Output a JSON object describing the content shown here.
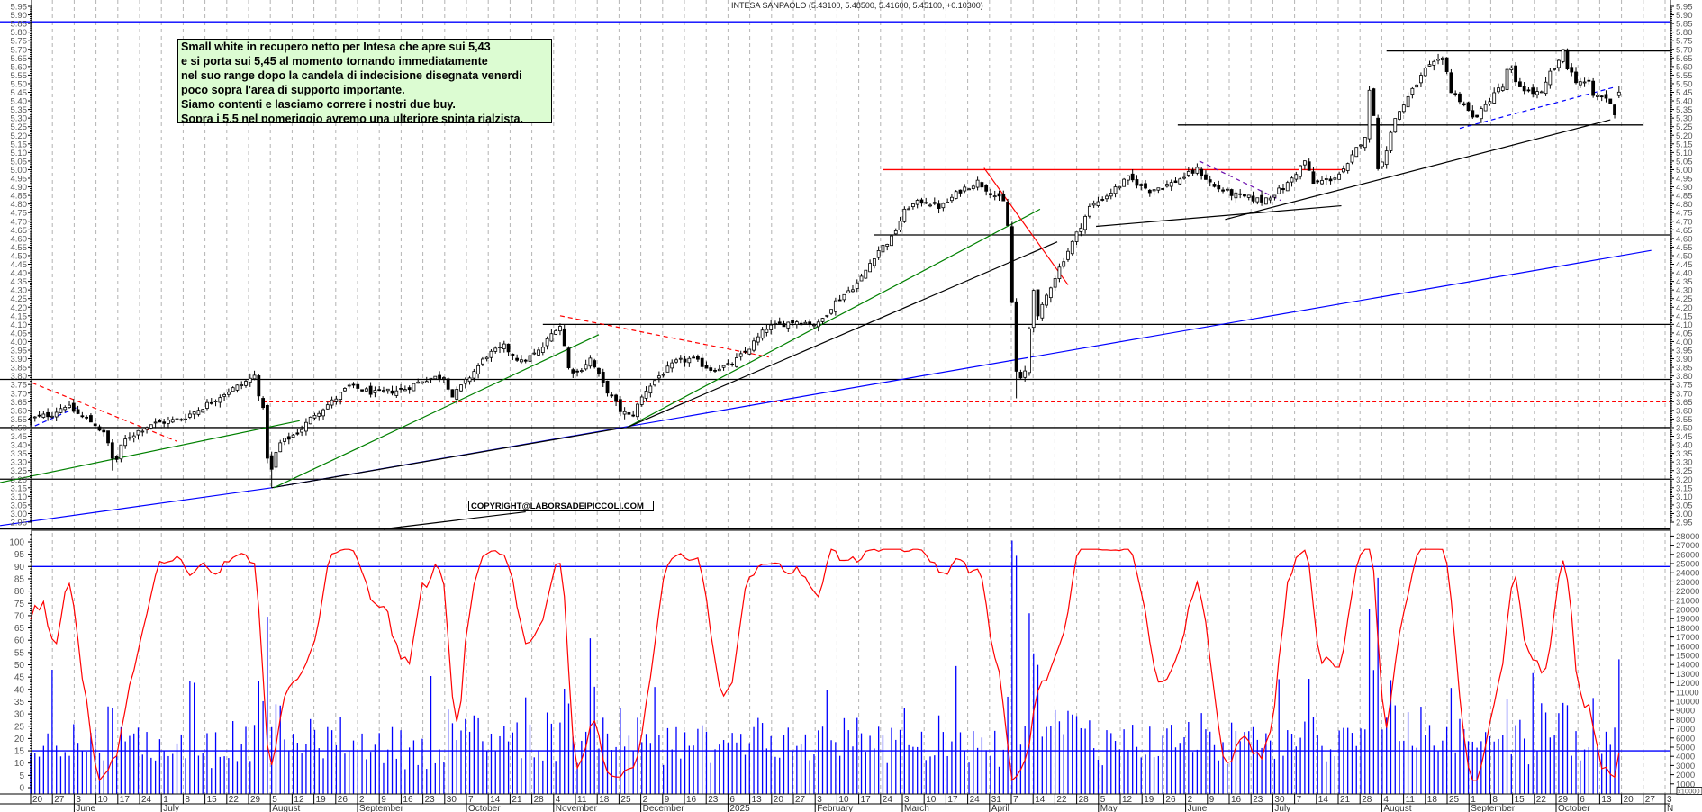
{
  "title": "INTESA SANPAOLO (5.43100, 5.48500, 5.41600, 5.45100, +0.10300)",
  "annotation": {
    "lines": [
      "Small white in recupero netto per Intesa che apre sui 5,43",
      "e si porta sui 5,45 al momento tornando immediatamente",
      "nel suo range dopo la candela di indecisione disegnata venerdi",
      "poco sopra l'area di supporto importante.",
      "Siamo contenti e lasciamo correre i nostri due buy.",
      "Sopra i 5,5 nel pomeriggio avremo una ulteriore spinta rialzista."
    ]
  },
  "copyright": "COPYRIGHT@LABORSADEIPICCOLI.COM",
  "chart_data": {
    "type": "candlestick",
    "title": "INTESA SANPAOLO (5.43100, 5.48500, 5.41600, 5.45100, +0.10300)",
    "last_bar": {
      "open": 5.431,
      "high": 5.485,
      "low": 5.416,
      "close": 5.451,
      "change": 0.103
    },
    "price_axis": {
      "min": 2.95,
      "max": 5.95,
      "step": 0.05
    },
    "osc_axis": {
      "min": 0,
      "max": 100,
      "step": 5
    },
    "volume_axis": {
      "min": 1000,
      "max": 28000,
      "step": 1000,
      "multiplier_label": "x10000"
    },
    "x_ticks": [
      "20",
      "27",
      "3",
      "10",
      "17",
      "24",
      "1",
      "8",
      "15",
      "22",
      "29",
      "5",
      "12",
      "19",
      "26",
      "2",
      "9",
      "16",
      "23",
      "30",
      "7",
      "14",
      "21",
      "28",
      "4",
      "11",
      "18",
      "25",
      "2",
      "9",
      "16",
      "23",
      "6",
      "13",
      "20",
      "27",
      "3",
      "10",
      "17",
      "24",
      "3",
      "10",
      "17",
      "24",
      "31",
      "7",
      "14",
      "22",
      "28",
      "5",
      "12",
      "19",
      "26",
      "2",
      "9",
      "16",
      "23",
      "30",
      "7",
      "14",
      "21",
      "28",
      "4",
      "11",
      "18",
      "25",
      "1",
      "8",
      "15",
      "22",
      "29",
      "6",
      "13",
      "20",
      "27",
      "3"
    ],
    "month_labels": [
      {
        "label": "June",
        "tick": 2
      },
      {
        "label": "July",
        "tick": 6
      },
      {
        "label": "August",
        "tick": 11
      },
      {
        "label": "September",
        "tick": 15
      },
      {
        "label": "October",
        "tick": 20
      },
      {
        "label": "November",
        "tick": 24
      },
      {
        "label": "December",
        "tick": 28
      },
      {
        "label": "2025",
        "tick": 32
      },
      {
        "label": "February",
        "tick": 36
      },
      {
        "label": "March",
        "tick": 40
      },
      {
        "label": "April",
        "tick": 44
      },
      {
        "label": "May",
        "tick": 49
      },
      {
        "label": "June",
        "tick": 53
      },
      {
        "label": "July",
        "tick": 57
      },
      {
        "label": "August",
        "tick": 62
      },
      {
        "label": "September",
        "tick": 66
      },
      {
        "label": "October",
        "tick": 70
      },
      {
        "label": "N",
        "tick": 75
      }
    ],
    "price_anchors_week_price": [
      [
        0,
        3.55
      ],
      [
        1,
        3.58
      ],
      [
        1.6,
        3.63
      ],
      [
        2.2,
        3.58
      ],
      [
        3,
        3.52
      ],
      [
        3.5,
        3.45
      ],
      [
        3.9,
        3.28
      ],
      [
        4.3,
        3.42
      ],
      [
        5,
        3.48
      ],
      [
        5.6,
        3.52
      ],
      [
        7,
        3.55
      ],
      [
        8,
        3.62
      ],
      [
        9,
        3.7
      ],
      [
        9.8,
        3.75
      ],
      [
        10.4,
        3.8
      ],
      [
        10.8,
        3.6
      ],
      [
        11.1,
        3.2
      ],
      [
        11.5,
        3.4
      ],
      [
        12.5,
        3.48
      ],
      [
        13.2,
        3.58
      ],
      [
        14,
        3.65
      ],
      [
        14.8,
        3.74
      ],
      [
        16,
        3.7
      ],
      [
        17.3,
        3.72
      ],
      [
        18.3,
        3.78
      ],
      [
        19.2,
        3.8
      ],
      [
        19.6,
        3.68
      ],
      [
        20.3,
        3.78
      ],
      [
        21.2,
        3.92
      ],
      [
        22,
        3.97
      ],
      [
        22.8,
        3.88
      ],
      [
        23.7,
        3.95
      ],
      [
        24.4,
        4.08
      ],
      [
        24.7,
        4.1
      ],
      [
        24.9,
        3.85
      ],
      [
        25.4,
        3.82
      ],
      [
        26,
        3.9
      ],
      [
        26.6,
        3.75
      ],
      [
        27.4,
        3.6
      ],
      [
        27.9,
        3.56
      ],
      [
        28.6,
        3.72
      ],
      [
        29.2,
        3.8
      ],
      [
        30,
        3.88
      ],
      [
        30.7,
        3.9
      ],
      [
        31.6,
        3.84
      ],
      [
        32.5,
        3.86
      ],
      [
        33.3,
        3.95
      ],
      [
        34.2,
        4.08
      ],
      [
        35.5,
        4.12
      ],
      [
        36.6,
        4.1
      ],
      [
        37.3,
        4.22
      ],
      [
        38.5,
        4.35
      ],
      [
        39.3,
        4.52
      ],
      [
        40,
        4.6
      ],
      [
        40.7,
        4.78
      ],
      [
        41.5,
        4.82
      ],
      [
        42.3,
        4.78
      ],
      [
        43.2,
        4.88
      ],
      [
        44,
        4.93
      ],
      [
        44.8,
        4.85
      ],
      [
        45.3,
        4.8
      ],
      [
        45.5,
        4.55
      ],
      [
        45.7,
        3.9
      ],
      [
        45.9,
        3.75
      ],
      [
        46.3,
        3.85
      ],
      [
        46.55,
        4.42
      ],
      [
        46.7,
        4.1
      ],
      [
        47.3,
        4.3
      ],
      [
        48,
        4.48
      ],
      [
        48.5,
        4.6
      ],
      [
        49.2,
        4.78
      ],
      [
        50,
        4.85
      ],
      [
        51,
        4.95
      ],
      [
        52,
        4.88
      ],
      [
        53,
        4.92
      ],
      [
        54.2,
        5.0
      ],
      [
        55,
        4.9
      ],
      [
        56,
        4.85
      ],
      [
        57.2,
        4.82
      ],
      [
        58.3,
        4.9
      ],
      [
        59.2,
        5.05
      ],
      [
        59.6,
        4.92
      ],
      [
        60.5,
        4.95
      ],
      [
        61.1,
        5.0
      ],
      [
        61.6,
        5.12
      ],
      [
        62,
        5.2
      ],
      [
        62.2,
        5.45
      ],
      [
        62.45,
        5.3
      ],
      [
        62.6,
        5.0
      ],
      [
        63,
        5.12
      ],
      [
        63.4,
        5.3
      ],
      [
        63.8,
        5.38
      ],
      [
        64.3,
        5.48
      ],
      [
        64.8,
        5.58
      ],
      [
        65.3,
        5.62
      ],
      [
        65.7,
        5.65
      ],
      [
        66,
        5.45
      ],
      [
        66.5,
        5.4
      ],
      [
        67,
        5.3
      ],
      [
        67.5,
        5.35
      ],
      [
        68,
        5.45
      ],
      [
        68.4,
        5.48
      ],
      [
        68.7,
        5.62
      ],
      [
        69,
        5.5
      ],
      [
        69.7,
        5.45
      ],
      [
        70.3,
        5.44
      ],
      [
        70.5,
        5.55
      ],
      [
        71,
        5.62
      ],
      [
        71.2,
        5.7
      ],
      [
        71.4,
        5.6
      ],
      [
        71.8,
        5.52
      ],
      [
        72.4,
        5.5
      ],
      [
        72.6,
        5.43
      ],
      [
        73.2,
        5.42
      ],
      [
        73.6,
        5.33
      ],
      [
        73.8,
        5.45
      ]
    ],
    "extreme_lows_week_price": [
      [
        11.1,
        3.15
      ],
      [
        45.9,
        3.67
      ],
      [
        3.9,
        3.25
      ]
    ],
    "horizontal_levels": [
      {
        "price": 5.86,
        "from": null,
        "to": null,
        "color": "#0000ff",
        "dash": false
      },
      {
        "price": 5.69,
        "from": 63,
        "to": null,
        "color": "#000000",
        "dash": false
      },
      {
        "price": 5.26,
        "from": 53.3,
        "to": 74.9,
        "color": "#000000",
        "dash": false
      },
      {
        "price": 5.0,
        "from": 39.6,
        "to": 61.1,
        "color": "#ff0000",
        "dash": false
      },
      {
        "price": 4.62,
        "from": 39.2,
        "to": null,
        "color": "#000000",
        "dash": false
      },
      {
        "price": 4.1,
        "from": 23.8,
        "to": null,
        "color": "#000000",
        "dash": false
      },
      {
        "price": 3.78,
        "from": null,
        "to": null,
        "color": "#000000",
        "dash": false
      },
      {
        "price": 3.65,
        "from": 10.8,
        "to": null,
        "color": "#ff0000",
        "dash": true
      },
      {
        "price": 3.5,
        "from": null,
        "to": null,
        "color": "#000000",
        "dash": false
      },
      {
        "price": 3.2,
        "from": null,
        "to": null,
        "color": "#000000",
        "dash": false
      },
      {
        "price": 2.91,
        "from": null,
        "to": null,
        "color": "#000000",
        "dash": false
      }
    ],
    "trendlines": [
      {
        "points": [
          [
            -1.42,
            2.93
          ],
          [
            11.2,
            3.15
          ]
        ],
        "color": "#0000ff",
        "dash": false
      },
      {
        "points": [
          [
            11.2,
            3.15
          ],
          [
            75.3,
            4.53
          ]
        ],
        "color": "#0000ff",
        "dash": false
      },
      {
        "points": [
          [
            11.2,
            3.15
          ],
          [
            27.6,
            3.5
          ]
        ],
        "color": "#000000",
        "dash": false
      },
      {
        "points": [
          [
            -1.42,
            3.18
          ],
          [
            12.5,
            3.54
          ]
        ],
        "color": "#008000",
        "dash": false
      },
      {
        "points": [
          [
            11.3,
            3.15
          ],
          [
            26.4,
            4.04
          ]
        ],
        "color": "#008000",
        "dash": false
      },
      {
        "points": [
          [
            27.7,
            3.5
          ],
          [
            46.9,
            4.77
          ]
        ],
        "color": "#008000",
        "dash": false
      },
      {
        "points": [
          [
            27.7,
            3.5
          ],
          [
            47.7,
            4.58
          ]
        ],
        "color": "#000000",
        "dash": false
      },
      {
        "points": [
          [
            16.4,
            2.91
          ],
          [
            23,
            3.01
          ]
        ],
        "color": "#000000",
        "dash": false
      },
      {
        "points": [
          [
            49.5,
            4.67
          ],
          [
            60.9,
            4.79
          ]
        ],
        "color": "#000000",
        "dash": false
      },
      {
        "points": [
          [
            55.5,
            4.71
          ],
          [
            73.4,
            5.29
          ]
        ],
        "color": "#000000",
        "dash": false
      },
      {
        "points": [
          [
            44.3,
            5.01
          ],
          [
            48.2,
            4.33
          ]
        ],
        "color": "#ff0000",
        "dash": false
      },
      {
        "points": [
          [
            0.07,
            3.76
          ],
          [
            6.8,
            3.42
          ]
        ],
        "color": "#ff0000",
        "dash": true
      },
      {
        "points": [
          [
            24.6,
            4.15
          ],
          [
            34.3,
            3.91
          ]
        ],
        "color": "#ff0000",
        "dash": true
      },
      {
        "points": [
          [
            0.2,
            3.51
          ],
          [
            2.2,
            3.62
          ]
        ],
        "color": "#0000ff",
        "dash": true
      },
      {
        "points": [
          [
            54.3,
            5.05
          ],
          [
            58.1,
            4.82
          ]
        ],
        "color": "#6a0dad",
        "dash": true
      },
      {
        "points": [
          [
            66.4,
            5.24
          ],
          [
            73.6,
            5.48
          ]
        ],
        "color": "#0000ff",
        "dash": true
      }
    ],
    "osc_levels": [
      90,
      15
    ],
    "colors": {
      "oscillator": "#ff0000",
      "volume": "#0000ff",
      "grid": "#b4b4b4"
    }
  }
}
